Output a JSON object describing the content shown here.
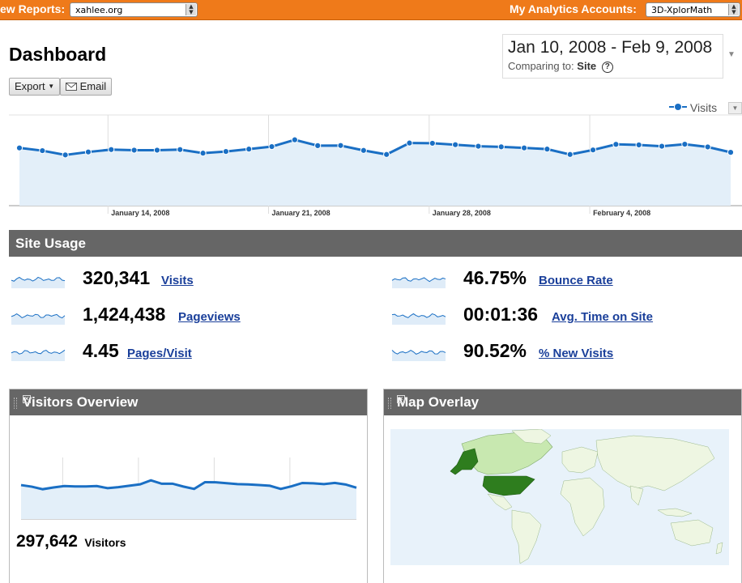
{
  "topbar": {
    "reports_label": "ew Reports:",
    "reports_value": "xahlee.org",
    "accounts_label": "My Analytics Accounts:",
    "accounts_value": "3D-XplorMath"
  },
  "page_title": "Dashboard",
  "date_range": {
    "range": "Jan 10, 2008 - Feb 9, 2008",
    "comparing_label": "Comparing to:",
    "comparing_value": "Site",
    "help": "?"
  },
  "toolbar": {
    "export_label": "Export",
    "email_label": "Email"
  },
  "chart_legend": "Visits",
  "chart_data": {
    "type": "line",
    "series": [
      {
        "name": "Visits",
        "values": [
          10840,
          10610,
          10250,
          10500,
          10700,
          10650,
          10650,
          10700,
          10400,
          10540,
          10740,
          10950,
          11520,
          11030,
          11040,
          10630,
          10290,
          11250,
          11230,
          11110,
          10980,
          10930,
          10840,
          10740,
          10290,
          10670,
          11140,
          11090,
          10980,
          11150,
          10920,
          10470
        ]
      }
    ],
    "x_tick_labels": [
      "January 14, 2008",
      "January 21, 2008",
      "January 28, 2008",
      "February 4, 2008"
    ],
    "ylim": [
      6000,
      13600
    ],
    "grid": true
  },
  "site_usage": {
    "title": "Site Usage",
    "metrics": [
      {
        "value": "320,341",
        "label": "Visits"
      },
      {
        "value": "1,424,438",
        "label": "Pageviews"
      },
      {
        "value": "4.45",
        "label": "Pages/Visit"
      },
      {
        "value": "46.75%",
        "label": "Bounce Rate"
      },
      {
        "value": "00:01:36",
        "label": "Avg. Time on Site"
      },
      {
        "value": "90.52%",
        "label": "% New Visits"
      }
    ]
  },
  "visitors_overview": {
    "title": "Visitors Overview",
    "count": "297,642",
    "count_label": "Visitors"
  },
  "map_overlay": {
    "title": "Map Overlay"
  },
  "colors": {
    "accent": "#ef7a1a",
    "series": "#1a6fc4",
    "area": "#e3eff9",
    "map_dark": "#2e7d1e",
    "map_light": "#c8e8b0"
  }
}
